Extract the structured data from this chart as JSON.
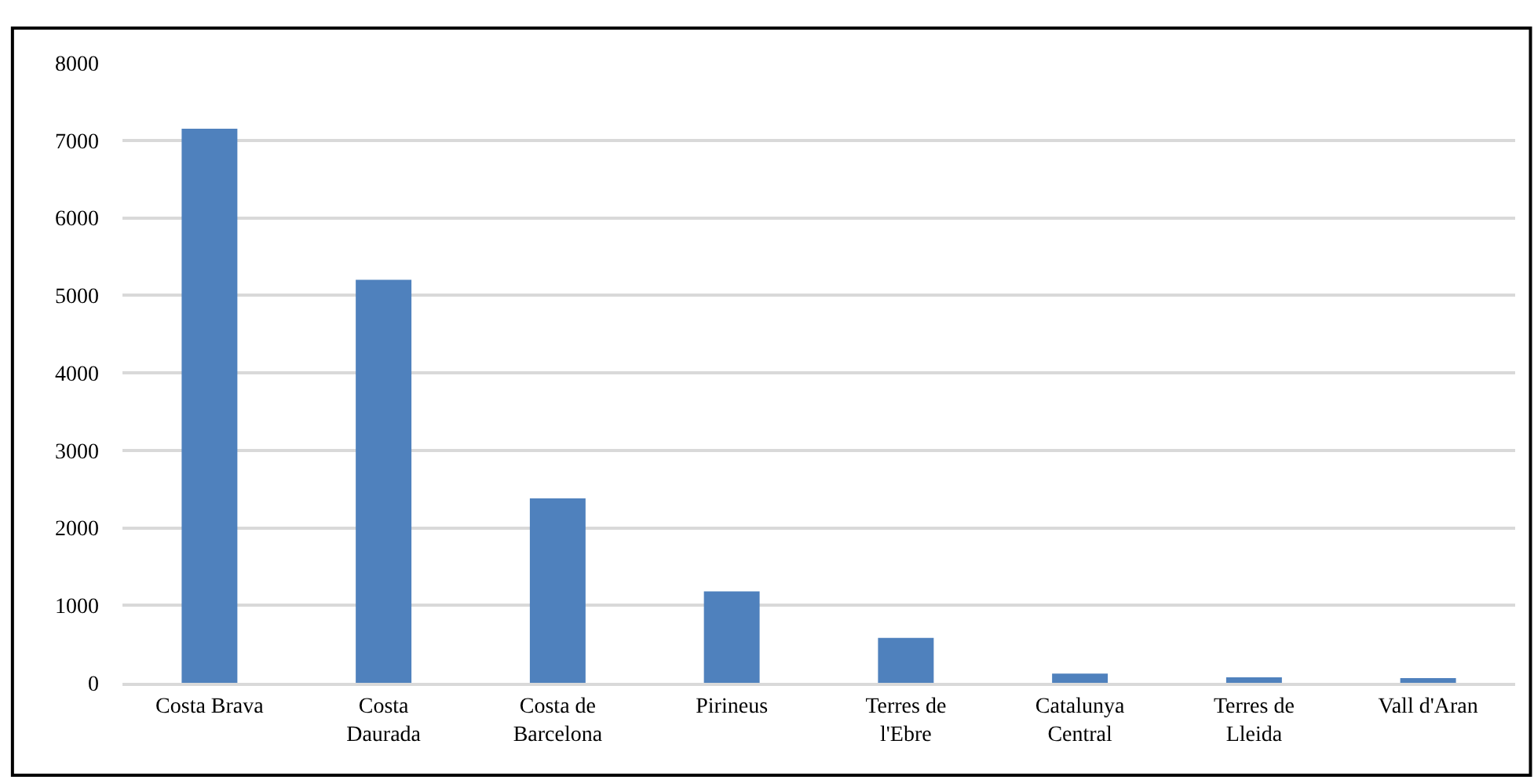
{
  "chart_data": {
    "type": "bar",
    "categories": [
      "Costa Brava",
      "Costa\nDaurada",
      "Costa de\nBarcelona",
      "Pirineus",
      "Terres de\nl'Ebre",
      "Catalunya\nCentral",
      "Terres de\nLleida",
      "Vall d'Aran"
    ],
    "values": [
      7150,
      5200,
      2380,
      1180,
      580,
      120,
      70,
      60
    ],
    "color": "#4f81bd",
    "ylim": [
      0,
      8000
    ],
    "yticks": [
      0,
      1000,
      2000,
      3000,
      4000,
      5000,
      6000,
      7000,
      8000
    ],
    "grid": "y",
    "legend": false
  }
}
